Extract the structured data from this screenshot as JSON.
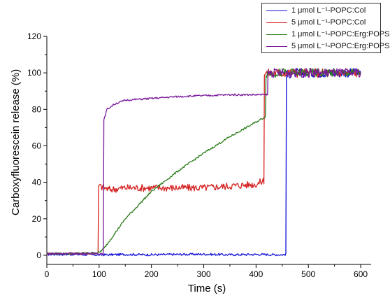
{
  "chart_data": {
    "type": "line",
    "xlabel": "Time (s)",
    "ylabel": "Carboxyfluorescein release (%)",
    "xlim": [
      0,
      620
    ],
    "ylim": [
      -5,
      120
    ],
    "xticks": [
      0,
      100,
      200,
      300,
      400,
      500,
      600
    ],
    "yticks": [
      0,
      20,
      40,
      60,
      80,
      100,
      120
    ],
    "grid": false,
    "legend_position": "top-right",
    "series": [
      {
        "name": "1 μmol L⁻¹-POPC:Col",
        "color": "#1010d8",
        "x": [
          0,
          50,
          100,
          150,
          200,
          250,
          300,
          350,
          400,
          450,
          457,
          458,
          470,
          500,
          550,
          600
        ],
        "y": [
          0.5,
          0.5,
          0.2,
          0.5,
          0.3,
          0.5,
          0.6,
          0.3,
          0.5,
          0.3,
          0.5,
          99,
          100,
          100,
          100,
          100
        ]
      },
      {
        "name": "5 μmol L⁻¹-POPC:Col",
        "color": "#d42020",
        "x": [
          0,
          50,
          98,
          99,
          120,
          150,
          200,
          250,
          300,
          350,
          400,
          415,
          416,
          450,
          500,
          550,
          600
        ],
        "y": [
          1,
          1,
          1,
          38,
          36,
          37,
          37,
          37,
          37,
          38,
          39,
          41,
          100,
          100,
          100,
          100,
          100
        ]
      },
      {
        "name": "1 μmol L⁻¹-POPC:Erg:POPS",
        "color": "#2a7a1a",
        "x": [
          0,
          50,
          100,
          110,
          150,
          200,
          250,
          300,
          350,
          400,
          418,
          419,
          450,
          500,
          550,
          600
        ],
        "y": [
          1,
          1,
          1.5,
          4,
          20,
          35,
          46,
          56,
          65,
          73,
          76,
          100,
          100,
          100,
          100,
          100
        ]
      },
      {
        "name": "5 μmol L⁻¹-POPC:Erg:POPS",
        "color": "#7a1a9a",
        "x": [
          0,
          50,
          100,
          108,
          109,
          115,
          130,
          150,
          200,
          250,
          300,
          350,
          400,
          422,
          423,
          450,
          500,
          550,
          600
        ],
        "y": [
          1,
          1,
          1,
          1,
          74,
          80,
          83,
          85,
          86,
          87,
          87.5,
          88,
          88,
          88,
          100,
          100,
          100,
          100,
          100
        ]
      }
    ]
  }
}
